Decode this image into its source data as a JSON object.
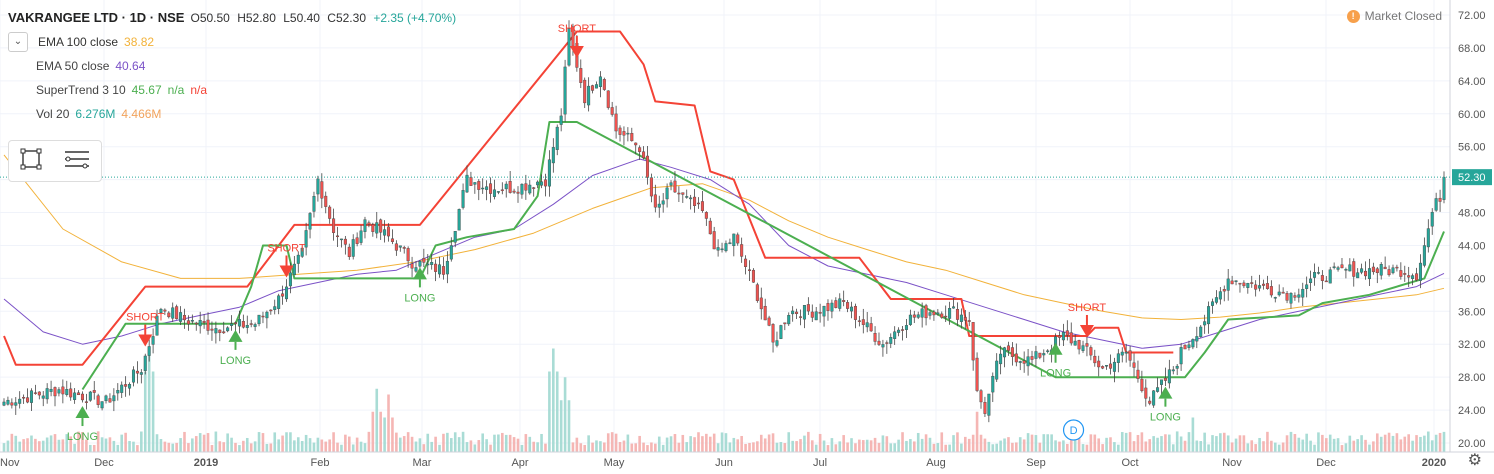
{
  "header": {
    "symbol": "VAKRANGEE LTD · 1D · NSE",
    "open": "O50.50",
    "high": "H52.80",
    "low": "L50.40",
    "close": "C52.30",
    "change": "+2.35 (+4.70%)",
    "change_color": "#26a69a"
  },
  "indicators": [
    {
      "label": "EMA 100 close",
      "v1": "38.82",
      "v1_color": "#f2b23a",
      "v2": "",
      "v3": ""
    },
    {
      "label": "EMA 50 close",
      "v1": "40.64",
      "v1_color": "#7b52c7",
      "v2": "",
      "v3": ""
    },
    {
      "label": "SuperTrend 3 10",
      "v1": "45.67",
      "v1_color": "#4caf50",
      "v2": "n/a",
      "v2_color": "#4caf50",
      "v3": "n/a",
      "v3_color": "#f44336"
    },
    {
      "label": "Vol 20",
      "v1": "6.276M",
      "v1_color": "#26a69a",
      "v2": "4.466M",
      "v2_color": "#f2a35c",
      "v3": ""
    }
  ],
  "status": {
    "label": "Market Closed",
    "icon": "warning-dot-icon",
    "dot_glyph": "!"
  },
  "toolbar": {
    "icons": [
      "rectangle-select-icon",
      "list-lines-icon"
    ]
  },
  "chart_data": {
    "type": "candlestick",
    "ylim": [
      20,
      72
    ],
    "y_ticks": [
      "20.00",
      "24.00",
      "28.00",
      "32.00",
      "36.00",
      "40.00",
      "44.00",
      "48.00",
      "52.00",
      "56.00",
      "60.00",
      "64.00",
      "68.00",
      "72.00"
    ],
    "x_labels": [
      "Nov",
      "Dec",
      "2019",
      "Feb",
      "Mar",
      "Apr",
      "May",
      "Jun",
      "Jul",
      "Aug",
      "Sep",
      "Oct",
      "Nov",
      "Dec",
      "2020"
    ],
    "last_price": "52.30",
    "last_price_color": "#26a69a",
    "up_color": "#26a69a",
    "down_color": "#ef5350",
    "close_anchors": [
      [
        0,
        25.0
      ],
      [
        14,
        26.5
      ],
      [
        26,
        25.0
      ],
      [
        35,
        29.0
      ],
      [
        40,
        36.5
      ],
      [
        46,
        35.0
      ],
      [
        54,
        34.0
      ],
      [
        64,
        34.5
      ],
      [
        70,
        37.5
      ],
      [
        76,
        43.0
      ],
      [
        80,
        52.0
      ],
      [
        84,
        46.0
      ],
      [
        88,
        43.0
      ],
      [
        92,
        47.0
      ],
      [
        98,
        45.0
      ],
      [
        104,
        42.0
      ],
      [
        112,
        41.0
      ],
      [
        118,
        52.0
      ],
      [
        124,
        51.0
      ],
      [
        130,
        51.0
      ],
      [
        138,
        52.0
      ],
      [
        142,
        60.0
      ],
      [
        144,
        70.0
      ],
      [
        148,
        62.0
      ],
      [
        152,
        65.0
      ],
      [
        156,
        58.0
      ],
      [
        162,
        56.0
      ],
      [
        166,
        48.0
      ],
      [
        170,
        51.0
      ],
      [
        178,
        48.0
      ],
      [
        182,
        43.0
      ],
      [
        186,
        45.0
      ],
      [
        192,
        38.0
      ],
      [
        196,
        32.0
      ],
      [
        200,
        36.0
      ],
      [
        206,
        36.0
      ],
      [
        214,
        37.0
      ],
      [
        218,
        35.0
      ],
      [
        224,
        32.0
      ],
      [
        230,
        35.0
      ],
      [
        236,
        36.0
      ],
      [
        242,
        36.0
      ],
      [
        246,
        35.0
      ],
      [
        248,
        26.0
      ],
      [
        250,
        24.0
      ],
      [
        254,
        31.0
      ],
      [
        262,
        30.0
      ],
      [
        270,
        33.0
      ],
      [
        274,
        32.0
      ],
      [
        280,
        29.0
      ],
      [
        286,
        31.0
      ],
      [
        290,
        27.0
      ],
      [
        292,
        25.0
      ],
      [
        298,
        29.0
      ],
      [
        300,
        31.0
      ],
      [
        306,
        35.0
      ],
      [
        312,
        40.0
      ],
      [
        320,
        39.0
      ],
      [
        328,
        38.0
      ],
      [
        334,
        40.0
      ],
      [
        342,
        41.0
      ],
      [
        350,
        41.0
      ],
      [
        356,
        41.0
      ],
      [
        360,
        40.5
      ],
      [
        362,
        44.0
      ],
      [
        364,
        48.0
      ],
      [
        366,
        50.0
      ],
      [
        367,
        52.3
      ]
    ],
    "volume_bursts": [
      [
        37,
        0.9
      ],
      [
        95,
        0.55
      ],
      [
        98,
        0.5
      ],
      [
        140,
        0.9
      ],
      [
        143,
        0.65
      ],
      [
        248,
        0.35
      ],
      [
        303,
        0.3
      ]
    ],
    "supertrend_up": [
      [
        20,
        26.5
      ],
      [
        31,
        34.5
      ],
      [
        37,
        34.5
      ],
      [
        59,
        34.5
      ],
      [
        63,
        39.0
      ],
      [
        66,
        44.0
      ],
      [
        72,
        44.0
      ],
      [
        74,
        40.0
      ],
      [
        106,
        40.0
      ],
      [
        110,
        44.0
      ],
      [
        118,
        45.0
      ],
      [
        130,
        46.0
      ],
      [
        136,
        50.0
      ],
      [
        139,
        59.0
      ],
      [
        146,
        59.0
      ],
      [
        268,
        28.0
      ],
      [
        282,
        28.0
      ],
      [
        296,
        28.0
      ],
      [
        301,
        28.0
      ],
      [
        306,
        31.0
      ],
      [
        312,
        35.0
      ],
      [
        330,
        35.5
      ],
      [
        336,
        37.0
      ],
      [
        348,
        38.0
      ],
      [
        362,
        40.0
      ],
      [
        367,
        45.7
      ]
    ],
    "supertrend_down": [
      [
        0,
        33.0
      ],
      [
        3,
        29.5
      ],
      [
        20,
        29.5
      ],
      [
        36,
        39.0
      ],
      [
        62,
        39.0
      ],
      [
        74,
        46.5
      ],
      [
        106,
        46.5
      ],
      [
        146,
        70.0
      ],
      [
        157,
        70.0
      ],
      [
        163,
        66.0
      ],
      [
        166,
        61.5
      ],
      [
        176,
        61.0
      ],
      [
        180,
        53.0
      ],
      [
        186,
        52.0
      ],
      [
        194,
        42.5
      ],
      [
        218,
        42.5
      ],
      [
        226,
        37.5
      ],
      [
        244,
        37.5
      ],
      [
        246,
        33.0
      ],
      [
        276,
        33.0
      ],
      [
        278,
        34.0
      ],
      [
        284,
        34.0
      ],
      [
        286,
        31.0
      ],
      [
        298,
        31.0
      ]
    ],
    "ema50": [
      [
        0,
        37.5
      ],
      [
        10,
        33.5
      ],
      [
        20,
        32.0
      ],
      [
        30,
        33.0
      ],
      [
        40,
        34.5
      ],
      [
        50,
        35.5
      ],
      [
        60,
        36.5
      ],
      [
        70,
        38.5
      ],
      [
        80,
        39.5
      ],
      [
        90,
        40.5
      ],
      [
        100,
        41.0
      ],
      [
        110,
        43.0
      ],
      [
        120,
        45.0
      ],
      [
        130,
        46.0
      ],
      [
        140,
        49.0
      ],
      [
        150,
        52.5
      ],
      [
        162,
        54.5
      ],
      [
        170,
        53.5
      ],
      [
        180,
        52.0
      ],
      [
        190,
        49.0
      ],
      [
        200,
        44.0
      ],
      [
        210,
        41.5
      ],
      [
        220,
        40.5
      ],
      [
        230,
        39.5
      ],
      [
        240,
        38.0
      ],
      [
        250,
        36.5
      ],
      [
        260,
        35.0
      ],
      [
        270,
        33.5
      ],
      [
        280,
        32.5
      ],
      [
        290,
        31.5
      ],
      [
        300,
        32.0
      ],
      [
        310,
        33.5
      ],
      [
        320,
        35.0
      ],
      [
        330,
        36.0
      ],
      [
        340,
        37.0
      ],
      [
        350,
        38.0
      ],
      [
        360,
        39.0
      ],
      [
        367,
        40.6
      ]
    ],
    "ema100": [
      [
        0,
        55.0
      ],
      [
        15,
        46.0
      ],
      [
        30,
        42.0
      ],
      [
        45,
        40.0
      ],
      [
        60,
        40.0
      ],
      [
        75,
        40.5
      ],
      [
        90,
        41.0
      ],
      [
        105,
        42.0
      ],
      [
        120,
        43.5
      ],
      [
        135,
        45.5
      ],
      [
        150,
        48.5
      ],
      [
        165,
        51.0
      ],
      [
        178,
        51.5
      ],
      [
        190,
        49.5
      ],
      [
        200,
        47.0
      ],
      [
        210,
        45.0
      ],
      [
        220,
        43.5
      ],
      [
        230,
        42.0
      ],
      [
        240,
        41.0
      ],
      [
        250,
        39.5
      ],
      [
        260,
        38.0
      ],
      [
        270,
        37.0
      ],
      [
        280,
        36.0
      ],
      [
        290,
        35.2
      ],
      [
        300,
        35.0
      ],
      [
        310,
        35.3
      ],
      [
        320,
        35.8
      ],
      [
        330,
        36.5
      ],
      [
        340,
        37.0
      ],
      [
        350,
        37.5
      ],
      [
        360,
        38.0
      ],
      [
        367,
        38.8
      ]
    ],
    "signals": [
      {
        "label": "LONG",
        "kind": "long",
        "i": 20
      },
      {
        "label": "SHORT",
        "kind": "short",
        "i": 36
      },
      {
        "label": "LONG",
        "kind": "long",
        "i": 59
      },
      {
        "label": "SHORT",
        "kind": "short",
        "i": 72
      },
      {
        "label": "LONG",
        "kind": "long",
        "i": 106
      },
      {
        "label": "SHORT",
        "kind": "short",
        "i": 146
      },
      {
        "label": "LONG",
        "kind": "long",
        "i": 268
      },
      {
        "label": "SHORT",
        "kind": "short",
        "i": 276
      },
      {
        "label": "LONG",
        "kind": "long",
        "i": 296
      }
    ],
    "dividend_marker": {
      "label": "D",
      "i": 268
    }
  }
}
